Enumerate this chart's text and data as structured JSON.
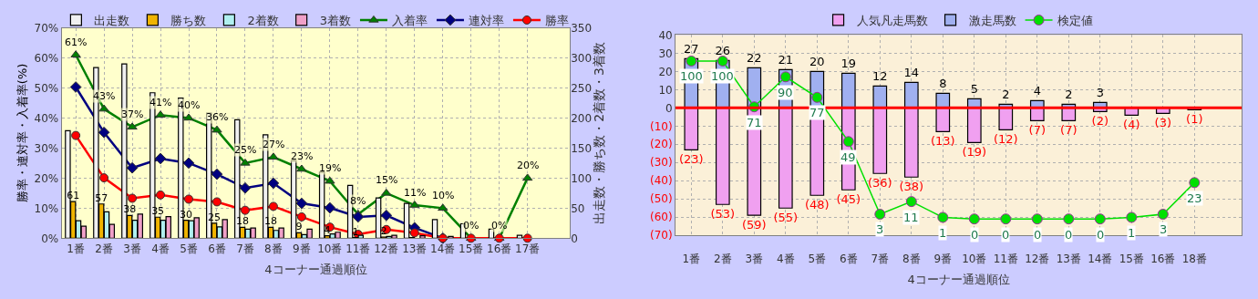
{
  "chart_data": [
    {
      "type": "bar",
      "categories": [
        "1番",
        "2番",
        "3番",
        "4番",
        "5番",
        "6番",
        "7番",
        "8番",
        "9番",
        "10番",
        "11番",
        "12番",
        "13番",
        "14番",
        "15番",
        "16番",
        "17番",
        null
      ],
      "xlabel": "4コーナー通過順位",
      "ylabel": "勝率・連対率・入着率(%)",
      "y2label": "出走数・勝ち数・2着数・3着数",
      "ylim": [
        0,
        70
      ],
      "yticks": [
        {
          "value": 0,
          "label": "0%"
        },
        {
          "value": 10,
          "label": "10%"
        },
        {
          "value": 20,
          "label": "20%"
        },
        {
          "value": 30,
          "label": "30%"
        },
        {
          "value": 40,
          "label": "40%"
        },
        {
          "value": 50,
          "label": "50%"
        },
        {
          "value": 60,
          "label": "60%"
        },
        {
          "value": 70,
          "label": "70%"
        }
      ],
      "y2lim": [
        0,
        350
      ],
      "y2ticks": [
        0,
        50,
        100,
        150,
        200,
        250,
        300,
        350
      ],
      "grid": true,
      "legend": "top",
      "series": [
        {
          "name": "出走数",
          "axis": "y2",
          "color": "#f0f0f0",
          "values": [
            179,
            284,
            290,
            242,
            233,
            208,
            197,
            172,
            129,
            110,
            88,
            67,
            58,
            31,
            24,
            15,
            5,
            null
          ]
        },
        {
          "name": "勝ち数",
          "axis": "y2",
          "color": "#f0b400",
          "values": [
            61,
            57,
            38,
            35,
            30,
            25,
            18,
            18,
            9,
            4,
            1,
            2,
            1,
            0,
            0,
            0,
            0,
            null
          ],
          "value_labels": [
            "61",
            "57",
            "38",
            "35",
            "30",
            "25",
            "18",
            "18",
            "9",
            "4",
            "1",
            "2",
            null,
            null,
            null,
            null,
            null,
            null
          ]
        },
        {
          "name": "2着数",
          "axis": "y2",
          "color": "#b0f0f0",
          "values": [
            29,
            44,
            30,
            30,
            29,
            19,
            15,
            13,
            6,
            7,
            5,
            3,
            null,
            0,
            0,
            0,
            0,
            null
          ]
        },
        {
          "name": "3着数",
          "axis": "y2",
          "color": "#f0a0c8",
          "values": [
            20,
            23,
            40,
            36,
            34,
            31,
            17,
            17,
            15,
            10,
            null,
            5,
            4,
            3,
            0,
            0,
            null,
            null
          ]
        },
        {
          "name": "入着率",
          "type": "line",
          "color": "#008000",
          "marker": "triangle",
          "values": [
            61,
            43,
            37,
            41,
            40,
            36,
            25,
            27,
            23,
            19,
            8,
            15,
            11,
            10,
            0,
            0,
            20,
            null
          ],
          "value_labels": [
            "61%",
            "43%",
            "37%",
            "41%",
            "40%",
            "36%",
            "25%",
            "27%",
            "23%",
            "19%",
            "8%",
            "15%",
            "11%",
            "10%",
            "0%",
            "0%",
            "20%",
            null
          ]
        },
        {
          "name": "連対率",
          "type": "line",
          "color": "#000080",
          "marker": "diamond",
          "values": [
            50.3,
            35.2,
            23.4,
            26.5,
            25.0,
            21.3,
            16.7,
            18.3,
            11.6,
            10.1,
            7.1,
            7.6,
            3.5,
            0,
            null,
            null,
            null,
            null
          ]
        },
        {
          "name": "勝率",
          "type": "line",
          "color": "#ff0000",
          "marker": "circle",
          "values": [
            34.2,
            20.1,
            13.3,
            14.4,
            13.0,
            12.1,
            9.3,
            10.6,
            7.1,
            3.7,
            1.3,
            2.9,
            1.8,
            0,
            0,
            0,
            0,
            null
          ]
        }
      ]
    },
    {
      "type": "bar",
      "stacked": true,
      "categories": [
        "1番",
        "2番",
        "3番",
        "4番",
        "5番",
        "6番",
        "7番",
        "8番",
        "9番",
        "10番",
        "11番",
        "12番",
        "13番",
        "14番",
        "15番",
        "16番",
        "18番",
        null
      ],
      "xlabel": "4コーナー通過順位",
      "ylim": [
        -70,
        40
      ],
      "yticks": [
        {
          "value": -70,
          "label": "(70)"
        },
        {
          "value": -60,
          "label": "(60)"
        },
        {
          "value": -50,
          "label": "(50)"
        },
        {
          "value": -40,
          "label": "(40)"
        },
        {
          "value": -30,
          "label": "(30)"
        },
        {
          "value": -20,
          "label": "(20)"
        },
        {
          "value": -10,
          "label": "(10)"
        },
        0,
        10,
        20,
        30,
        40
      ],
      "y2lim": [
        -10.4,
        116.5
      ],
      "grid": true,
      "legend": "top",
      "ref_lines": [
        {
          "axis": "y",
          "value": 0,
          "color": "#ff0000"
        }
      ],
      "series": [
        {
          "name": "人気凡走馬数",
          "color": "#f0a0f0",
          "values": [
            -23,
            -53,
            -59,
            -55,
            -48,
            -45,
            -36,
            -38,
            -13,
            -19,
            -12,
            -7,
            -7,
            -2,
            -4,
            -3,
            -1,
            null
          ],
          "value_labels": [
            "(23)",
            "(53)",
            "(59)",
            "(55)",
            "(48)",
            "(45)",
            "(36)",
            "(38)",
            "(13)",
            "(19)",
            "(12)",
            "(7)",
            "(7)",
            "(2)",
            "(4)",
            "(3)",
            "(1)",
            null
          ]
        },
        {
          "name": "激走馬数",
          "color": "#a0b0f0",
          "values": [
            27,
            26,
            22,
            21,
            20,
            19,
            12,
            14,
            8,
            5,
            2,
            4,
            2,
            3,
            0,
            0,
            0,
            null
          ],
          "value_labels": [
            "27",
            "26",
            "22",
            "21",
            "20",
            "19",
            "12",
            "14",
            "8",
            "5",
            "2",
            "4",
            "2",
            "3",
            null,
            null,
            null,
            null
          ]
        },
        {
          "name": "検定値",
          "type": "line",
          "axis": "y2",
          "color": "#00e000",
          "marker": "circle",
          "values": [
            100,
            100,
            71,
            90,
            77,
            49,
            3,
            11,
            1,
            0,
            0,
            0,
            0,
            0,
            1,
            3,
            23,
            null
          ],
          "value_labels": [
            "100",
            "100",
            "71",
            "90",
            "77",
            "49",
            "3",
            "11",
            "1",
            "0",
            "0",
            "0",
            "0",
            "0",
            "1",
            "3",
            "23",
            null
          ]
        }
      ]
    }
  ]
}
